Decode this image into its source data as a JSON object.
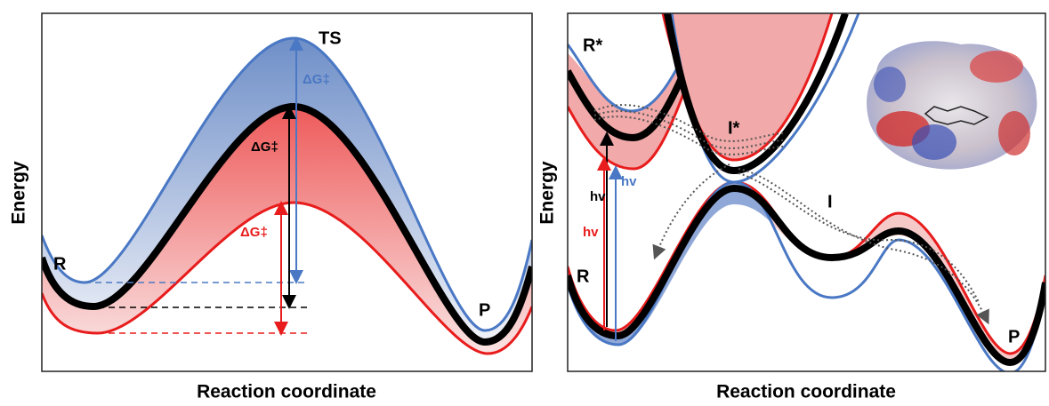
{
  "left_panel": {
    "y_label": "Energy",
    "x_label": "Reaction coordinate",
    "ts": "TS",
    "dg_blue": "ΔG‡",
    "dg_black": "ΔG‡",
    "dg_red": "ΔG‡",
    "reactant": "R",
    "product": "P"
  },
  "right_panel": {
    "y_label": "Energy",
    "x_label": "Reaction coordinate",
    "excited_reactant": "R*",
    "excited_intermediate": "I*",
    "intermediate": "I",
    "reactant": "R",
    "product": "P",
    "hv_black": "hv",
    "hv_red": "hv",
    "hv_blue": "hv"
  }
}
